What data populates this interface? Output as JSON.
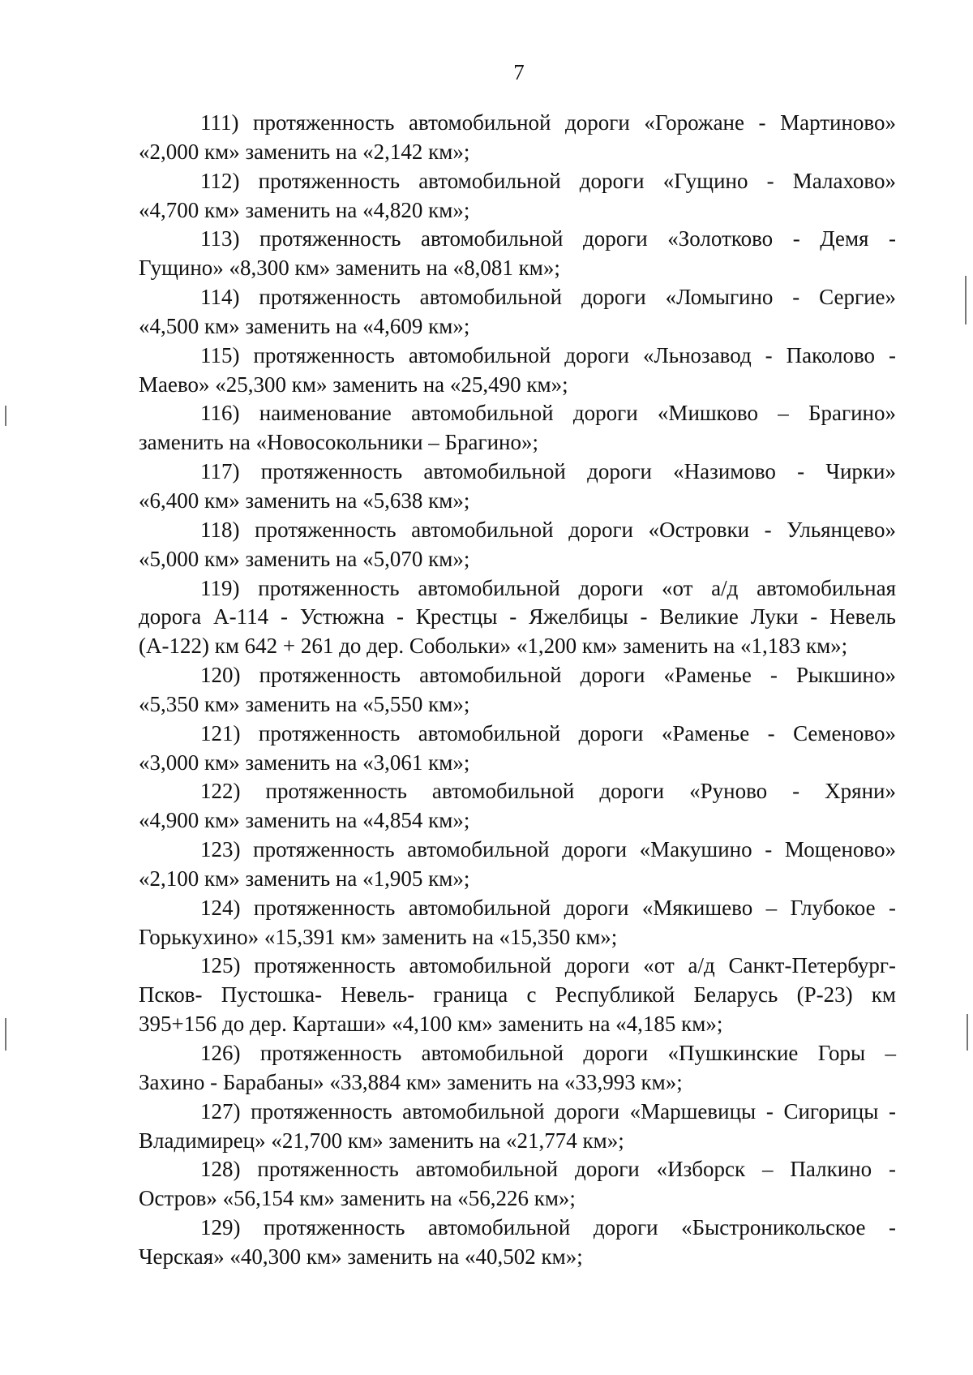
{
  "page_number": "7",
  "items": [
    {
      "lines": [
        "111)  протяженность автомобильной дороги «Горожане - Мартиново»",
        "«2,000 км» заменить на «2,142 км»;"
      ]
    },
    {
      "lines": [
        "112)  протяженность автомобильной дороги «Гущино - Малахово»",
        "«4,700 км» заменить на «4,820 км»;"
      ]
    },
    {
      "lines": [
        "113)  протяженность автомобильной дороги «Золотково - Демя -",
        "Гущино» «8,300 км» заменить на «8,081 км»;"
      ]
    },
    {
      "lines": [
        "114)  протяженность автомобильной дороги «Ломыгино - Сергие»",
        "«4,500 км» заменить на «4,609 км»;"
      ]
    },
    {
      "lines": [
        "115)  протяженность автомобильной дороги «Льнозавод - Паколово -",
        "Маево» «25,300 км» заменить на «25,490 км»;"
      ]
    },
    {
      "lines": [
        "116)  наименование автомобильной дороги «Мишково – Брагино»",
        "заменить на «Новосокольники – Брагино»;"
      ]
    },
    {
      "lines": [
        "117)  протяженность автомобильной дороги «Назимово - Чирки»",
        "«6,400 км» заменить на «5,638 км»;"
      ]
    },
    {
      "lines": [
        "118)  протяженность автомобильной дороги «Островки - Ульянцево»",
        "«5,000 км» заменить на «5,070 км»;"
      ]
    },
    {
      "lines": [
        "119)  протяженность автомобильной дороги «от а/д автомобильная",
        "дорога А-114 - Устюжна - Крестцы - Яжелбицы - Великие Луки - Невель",
        "(А-122) км 642 + 261 до дер. Собольки» «1,200 км» заменить на «1,183 км»;"
      ]
    },
    {
      "lines": [
        "120)  протяженность автомобильной дороги «Раменье - Рыкшино»",
        "«5,350 км» заменить на «5,550 км»;"
      ]
    },
    {
      "lines": [
        "121)  протяженность автомобильной дороги «Раменье - Семеново»",
        "«3,000 км» заменить на «3,061 км»;"
      ]
    },
    {
      "lines": [
        "122)  протяженность автомобильной дороги «Руново - Хряни»",
        "«4,900 км» заменить на «4,854 км»;"
      ]
    },
    {
      "lines": [
        "123)  протяженность автомобильной дороги «Макушино - Мощеново»",
        "«2,100 км» заменить на «1,905 км»;"
      ]
    },
    {
      "lines": [
        "124)  протяженность автомобильной дороги «Мякишево – Глубокое -",
        "Горькухино» «15,391 км» заменить на «15,350 км»;"
      ]
    },
    {
      "lines": [
        "125)  протяженность автомобильной дороги «от а/д Санкт-Петербург-",
        "Псков- Пустошка- Невель- граница с Республикой Беларусь (Р-23) км",
        "395+156 до дер. Карташи» «4,100 км» заменить на «4,185 км»;"
      ]
    },
    {
      "lines": [
        "126)  протяженность автомобильной дороги «Пушкинские Горы –",
        "Захино - Барабаны» «33,884 км» заменить на «33,993 км»;"
      ]
    },
    {
      "lines": [
        "127)  протяженность автомобильной дороги «Маршевицы - Сигорицы -",
        "Владимирец» «21,700 км» заменить на «21,774 км»;"
      ]
    },
    {
      "lines": [
        "128)  протяженность автомобильной дороги «Изборск – Палкино -",
        "Остров» «56,154 км» заменить на «56,226 км»;"
      ]
    },
    {
      "lines": [
        "129)  протяженность автомобильной дороги «Быстроникольское -",
        "Черская» «40,300 км» заменить на «40,502 км»;"
      ]
    }
  ]
}
